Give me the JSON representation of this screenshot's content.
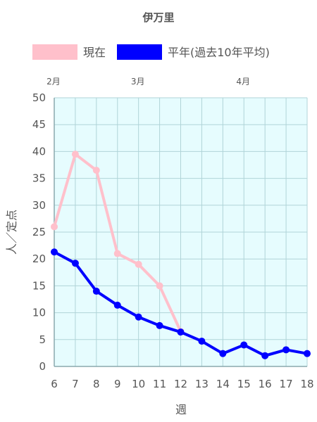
{
  "chart_data": {
    "type": "line",
    "title": "伊万里",
    "xlabel": "週",
    "ylabel": "人／定点",
    "x": [
      6,
      7,
      8,
      9,
      10,
      11,
      12,
      13,
      14,
      15,
      16,
      17,
      18
    ],
    "xlim": [
      6,
      18
    ],
    "ylim": [
      0,
      50
    ],
    "yticks": [
      0,
      5,
      10,
      15,
      20,
      25,
      30,
      35,
      40,
      45,
      50
    ],
    "grid": true,
    "legend": "top",
    "months": [
      {
        "label": "2月",
        "week": 6
      },
      {
        "label": "3月",
        "week": 10
      },
      {
        "label": "4月",
        "week": 15
      }
    ],
    "series": [
      {
        "name": "現在",
        "color": "#ffc0cb",
        "values": [
          26.0,
          39.5,
          36.5,
          21.0,
          19.0,
          15.0,
          6.5,
          null,
          null,
          null,
          null,
          null,
          null
        ]
      },
      {
        "name": "平年(過去10年平均)",
        "color": "#0000ff",
        "values": [
          21.3,
          19.2,
          14.0,
          11.4,
          9.2,
          7.6,
          6.4,
          4.7,
          2.4,
          4.0,
          2.0,
          3.1,
          2.4
        ]
      }
    ],
    "plot_bg": "#e6fcfe",
    "grid_color": "#b0d4d8"
  }
}
